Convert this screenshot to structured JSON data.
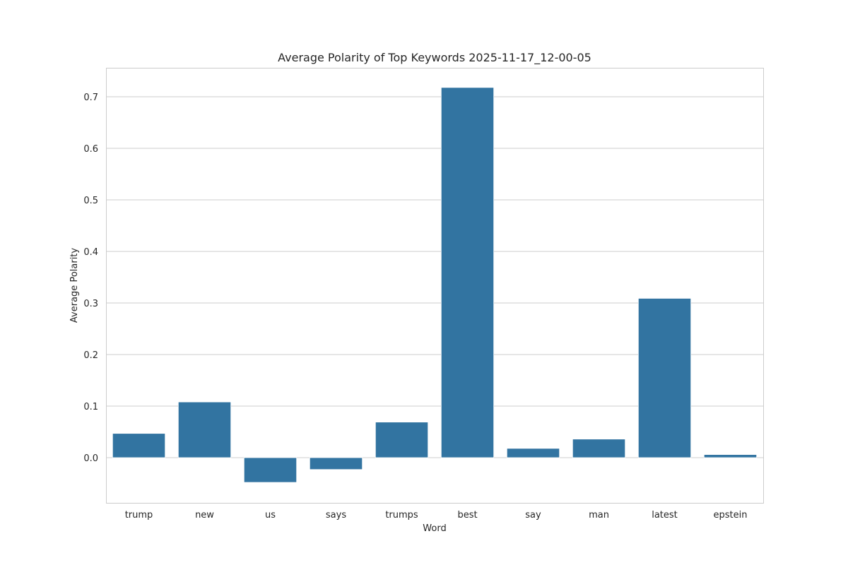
{
  "chart_data": {
    "type": "bar",
    "title": "Average Polarity of Top Keywords 2025-11-17_12-00-05",
    "xlabel": "Word",
    "ylabel": "Average Polarity",
    "categories": [
      "trump",
      "new",
      "us",
      "says",
      "trumps",
      "best",
      "say",
      "man",
      "latest",
      "epstein"
    ],
    "values": [
      0.047,
      0.108,
      -0.048,
      -0.023,
      0.069,
      0.718,
      0.018,
      0.036,
      0.309,
      0.006
    ],
    "yticks": [
      0.0,
      0.1,
      0.2,
      0.3,
      0.4,
      0.5,
      0.6,
      0.7
    ],
    "ytick_labels": [
      "0.0",
      "0.1",
      "0.2",
      "0.3",
      "0.4",
      "0.5",
      "0.6",
      "0.7"
    ],
    "ylim": [
      -0.088,
      0.757
    ],
    "grid": true,
    "bar_color": "#3274a1",
    "legend": null
  }
}
